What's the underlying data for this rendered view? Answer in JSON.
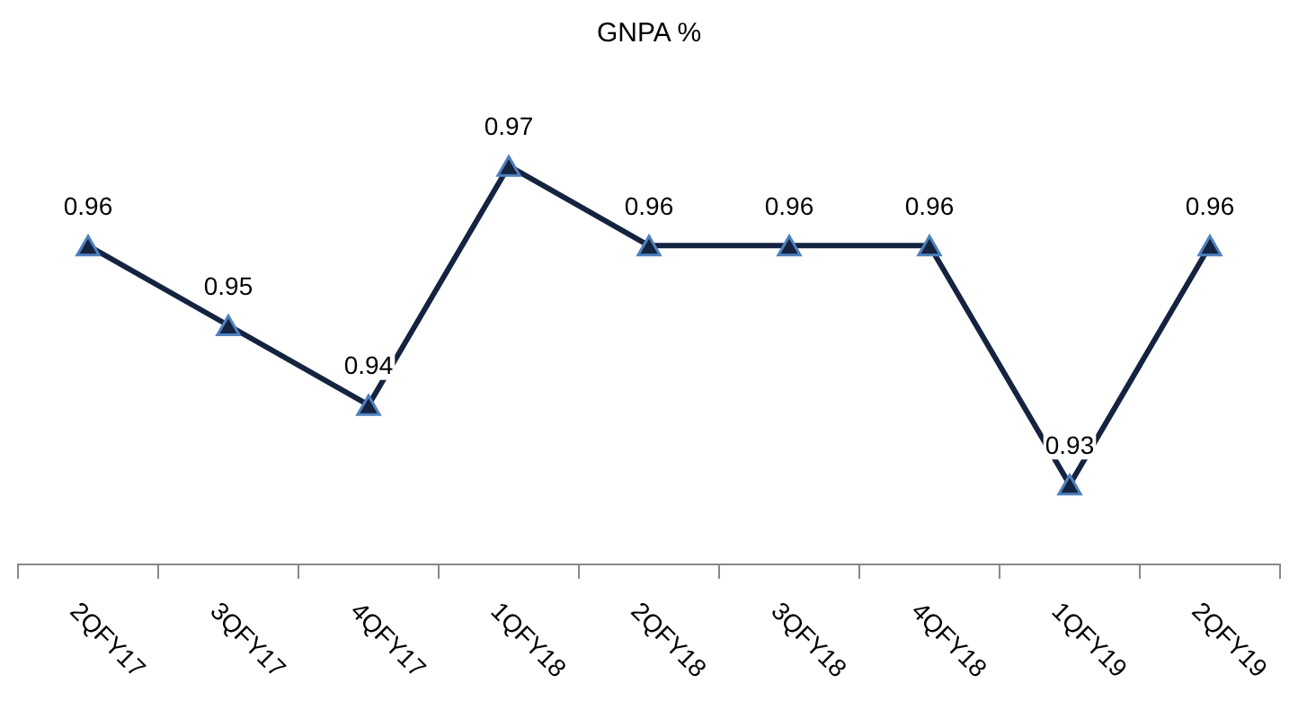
{
  "chart_data": {
    "type": "line",
    "title": "GNPA %",
    "categories": [
      "2QFY17",
      "3QFY17",
      "4QFY17",
      "1QFY18",
      "2QFY18",
      "3QFY18",
      "4QFY18",
      "1QFY19",
      "2QFY19"
    ],
    "series": [
      {
        "color": "#14233f",
        "values": [
          0.96,
          0.95,
          0.94,
          0.97,
          0.96,
          0.96,
          0.96,
          0.93,
          0.96
        ]
      }
    ],
    "data_labels": true,
    "marker": "triangle",
    "legend": false,
    "grid": false
  }
}
